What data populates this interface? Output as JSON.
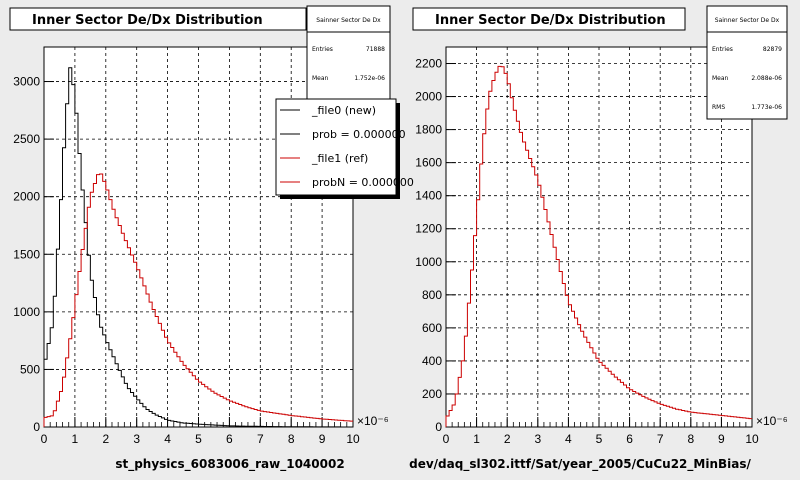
{
  "chart_data": [
    {
      "type": "histogram",
      "title": "Inner Sector De/Dx Distribution",
      "xlabel": "st_physics_6083006_raw_1040002",
      "x_exponent": "×10⁻⁶",
      "xlim": [
        0,
        10
      ],
      "ylim": [
        0,
        3300
      ],
      "xticks": [
        "0",
        "1",
        "2",
        "3",
        "4",
        "5",
        "6",
        "7",
        "8",
        "9",
        "10"
      ],
      "yticks": [
        "0",
        "500",
        "1000",
        "1500",
        "2000",
        "2500",
        "3000"
      ],
      "grid": true,
      "stats": {
        "title": "Sainner Sector De Dx",
        "rows": [
          {
            "label": "Entries",
            "value": "71888"
          },
          {
            "label": "Mean",
            "value": "1.752e-06"
          }
        ]
      },
      "legend": {
        "placement": "top-right",
        "entries": [
          {
            "label": "_file0 (new)",
            "color": "#000000"
          },
          {
            "label": "prob = 0.000000",
            "color": "#000000"
          },
          {
            "label": "_file1 (ref)",
            "color": "#cc0000"
          },
          {
            "label": "probN = 0.000000",
            "color": "#cc0000"
          }
        ]
      },
      "series": [
        {
          "name": "_file0 (new)",
          "color": "#000000",
          "points": [
            [
              0,
              520
            ],
            [
              0.3,
              930
            ],
            [
              0.5,
              1750
            ],
            [
              0.7,
              2650
            ],
            [
              0.85,
              3120
            ],
            [
              1.0,
              2900
            ],
            [
              1.2,
              2200
            ],
            [
              1.5,
              1350
            ],
            [
              1.8,
              900
            ],
            [
              2.1,
              700
            ],
            [
              2.4,
              520
            ],
            [
              2.7,
              350
            ],
            [
              3.0,
              250
            ],
            [
              3.3,
              160
            ],
            [
              3.6,
              110
            ],
            [
              4.0,
              60
            ],
            [
              4.5,
              35
            ],
            [
              5.0,
              25
            ],
            [
              6.0,
              10
            ],
            [
              7.0,
              5
            ],
            [
              8.0,
              2
            ],
            [
              10.0,
              0
            ]
          ]
        },
        {
          "name": "_file1 (ref)",
          "color": "#cc0000",
          "points": [
            [
              0,
              80
            ],
            [
              0.3,
              100
            ],
            [
              0.6,
              350
            ],
            [
              0.9,
              850
            ],
            [
              1.2,
              1450
            ],
            [
              1.5,
              2000
            ],
            [
              1.8,
              2230
            ],
            [
              2.0,
              2100
            ],
            [
              2.3,
              1850
            ],
            [
              2.6,
              1650
            ],
            [
              3.0,
              1400
            ],
            [
              3.5,
              1050
            ],
            [
              4.0,
              750
            ],
            [
              4.5,
              550
            ],
            [
              5.0,
              400
            ],
            [
              5.5,
              300
            ],
            [
              6.0,
              230
            ],
            [
              6.5,
              180
            ],
            [
              7.0,
              140
            ],
            [
              8.0,
              100
            ],
            [
              9.0,
              70
            ],
            [
              10.0,
              50
            ]
          ]
        }
      ]
    },
    {
      "type": "histogram",
      "title": "Inner Sector De/Dx Distribution",
      "xlabel": "dev/daq_sl302.ittf/Sat/year_2005/CuCu22_MinBias/",
      "x_exponent": "×10⁻⁶",
      "xlim": [
        0,
        10
      ],
      "ylim": [
        0,
        2300
      ],
      "xticks": [
        "0",
        "1",
        "2",
        "3",
        "4",
        "5",
        "6",
        "7",
        "8",
        "9",
        "10"
      ],
      "yticks": [
        "0",
        "200",
        "400",
        "600",
        "800",
        "1000",
        "1200",
        "1400",
        "1600",
        "1800",
        "2000",
        "2200"
      ],
      "grid": true,
      "stats": {
        "title": "Sainner Sector De Dx",
        "rows": [
          {
            "label": "Entries",
            "value": "82879"
          },
          {
            "label": "Mean",
            "value": "2.088e-06"
          },
          {
            "label": "RMS",
            "value": "1.773e-06"
          }
        ]
      },
      "series": [
        {
          "color": "#cc0000",
          "points": [
            [
              0,
              50
            ],
            [
              0.3,
              150
            ],
            [
              0.6,
              450
            ],
            [
              0.9,
              1050
            ],
            [
              1.2,
              1700
            ],
            [
              1.4,
              2000
            ],
            [
              1.6,
              2130
            ],
            [
              1.8,
              2200
            ],
            [
              2.0,
              2120
            ],
            [
              2.2,
              1950
            ],
            [
              2.5,
              1750
            ],
            [
              2.8,
              1600
            ],
            [
              3.0,
              1500
            ],
            [
              3.3,
              1280
            ],
            [
              3.6,
              1050
            ],
            [
              4.0,
              760
            ],
            [
              4.5,
              560
            ],
            [
              5.0,
              400
            ],
            [
              5.5,
              310
            ],
            [
              6.0,
              230
            ],
            [
              6.5,
              180
            ],
            [
              7.0,
              140
            ],
            [
              7.5,
              110
            ],
            [
              8.0,
              90
            ],
            [
              9.0,
              70
            ],
            [
              10.0,
              50
            ]
          ]
        }
      ]
    }
  ]
}
